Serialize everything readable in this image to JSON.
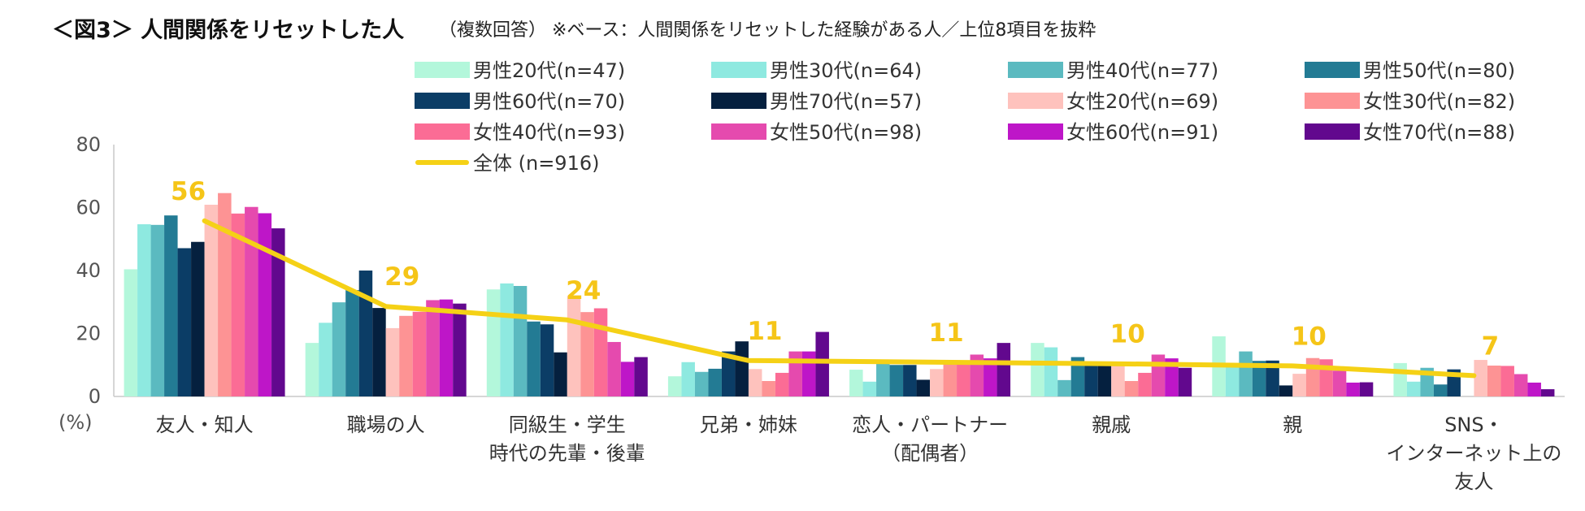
{
  "title": "＜図3＞ 人間関係をリセットした人",
  "title_note": "（複数回答） ※ベース：人間関係をリセットした経験がある人／上位8項目を抜粋",
  "chart_data": {
    "type": "bar",
    "y_unit": "(%)",
    "ylim": [
      0,
      80
    ],
    "yticks": [
      0,
      20,
      40,
      60,
      80
    ],
    "grid": false,
    "legend_position": "top",
    "categories": [
      [
        "友人・知人"
      ],
      [
        "職場の人"
      ],
      [
        "同級生・学生",
        "時代の先輩・後輩"
      ],
      [
        "兄弟・姉妹"
      ],
      [
        "恋人・パートナー",
        "（配偶者）"
      ],
      [
        "親戚"
      ],
      [
        "親"
      ],
      [
        "SNS・",
        "インターネット上の",
        "友人"
      ]
    ],
    "series": [
      {
        "name": "男性20代(n=47)",
        "color": "#B3F7DB",
        "values": [
          40.4,
          17.0,
          34.0,
          6.4,
          8.5,
          17.0,
          19.1,
          10.6
        ]
      },
      {
        "name": "男性30代(n=64)",
        "color": "#8EE9E0",
        "values": [
          54.7,
          23.4,
          35.9,
          10.9,
          4.7,
          15.6,
          9.4,
          4.7
        ]
      },
      {
        "name": "男性40代(n=77)",
        "color": "#5BBAC0",
        "values": [
          54.5,
          29.9,
          35.1,
          7.8,
          10.4,
          5.2,
          14.3,
          9.1
        ]
      },
      {
        "name": "男性50代(n=80)",
        "color": "#237B94",
        "values": [
          57.5,
          33.8,
          23.8,
          8.8,
          10.0,
          12.5,
          11.3,
          3.8
        ]
      },
      {
        "name": "男性60代(n=70)",
        "color": "#0B3D66",
        "values": [
          47.1,
          40.0,
          22.9,
          14.3,
          10.0,
          10.0,
          11.4,
          8.6
        ]
      },
      {
        "name": "男性70代(n=57)",
        "color": "#05203F",
        "values": [
          49.1,
          28.1,
          14.0,
          17.5,
          5.3,
          10.5,
          3.5,
          0
        ]
      },
      {
        "name": "女性20代(n=69)",
        "color": "#FEC2BD",
        "values": [
          60.9,
          21.7,
          31.9,
          8.7,
          8.7,
          10.1,
          7.2,
          11.6
        ]
      },
      {
        "name": "女性30代(n=82)",
        "color": "#FD9394",
        "values": [
          64.6,
          25.6,
          26.8,
          4.9,
          11.0,
          4.9,
          12.2,
          9.8
        ]
      },
      {
        "name": "女性40代(n=93)",
        "color": "#FB6C95",
        "values": [
          58.1,
          26.9,
          28.0,
          7.5,
          10.8,
          7.5,
          11.8,
          9.7
        ]
      },
      {
        "name": "女性50代(n=98)",
        "color": "#E54AAE",
        "values": [
          60.2,
          30.6,
          17.3,
          14.3,
          13.3,
          13.3,
          8.2,
          7.1
        ]
      },
      {
        "name": "女性60代(n=91)",
        "color": "#BE16C8",
        "values": [
          58.2,
          30.8,
          11.0,
          14.3,
          12.1,
          12.1,
          4.4,
          4.4
        ]
      },
      {
        "name": "女性70代(n=88)",
        "color": "#62088E",
        "values": [
          53.4,
          29.5,
          12.5,
          20.5,
          17.0,
          9.1,
          4.5,
          2.3
        ]
      }
    ],
    "total_line": {
      "name": "全体 (n=916)",
      "color": "#F5D116",
      "label_color": "#F5C518",
      "values": [
        55.8,
        28.6,
        24.3,
        11.4,
        10.9,
        10.4,
        9.7,
        6.6
      ],
      "labels": [
        "56",
        "29",
        "24",
        "11",
        "11",
        "10",
        "10",
        "7"
      ]
    }
  }
}
